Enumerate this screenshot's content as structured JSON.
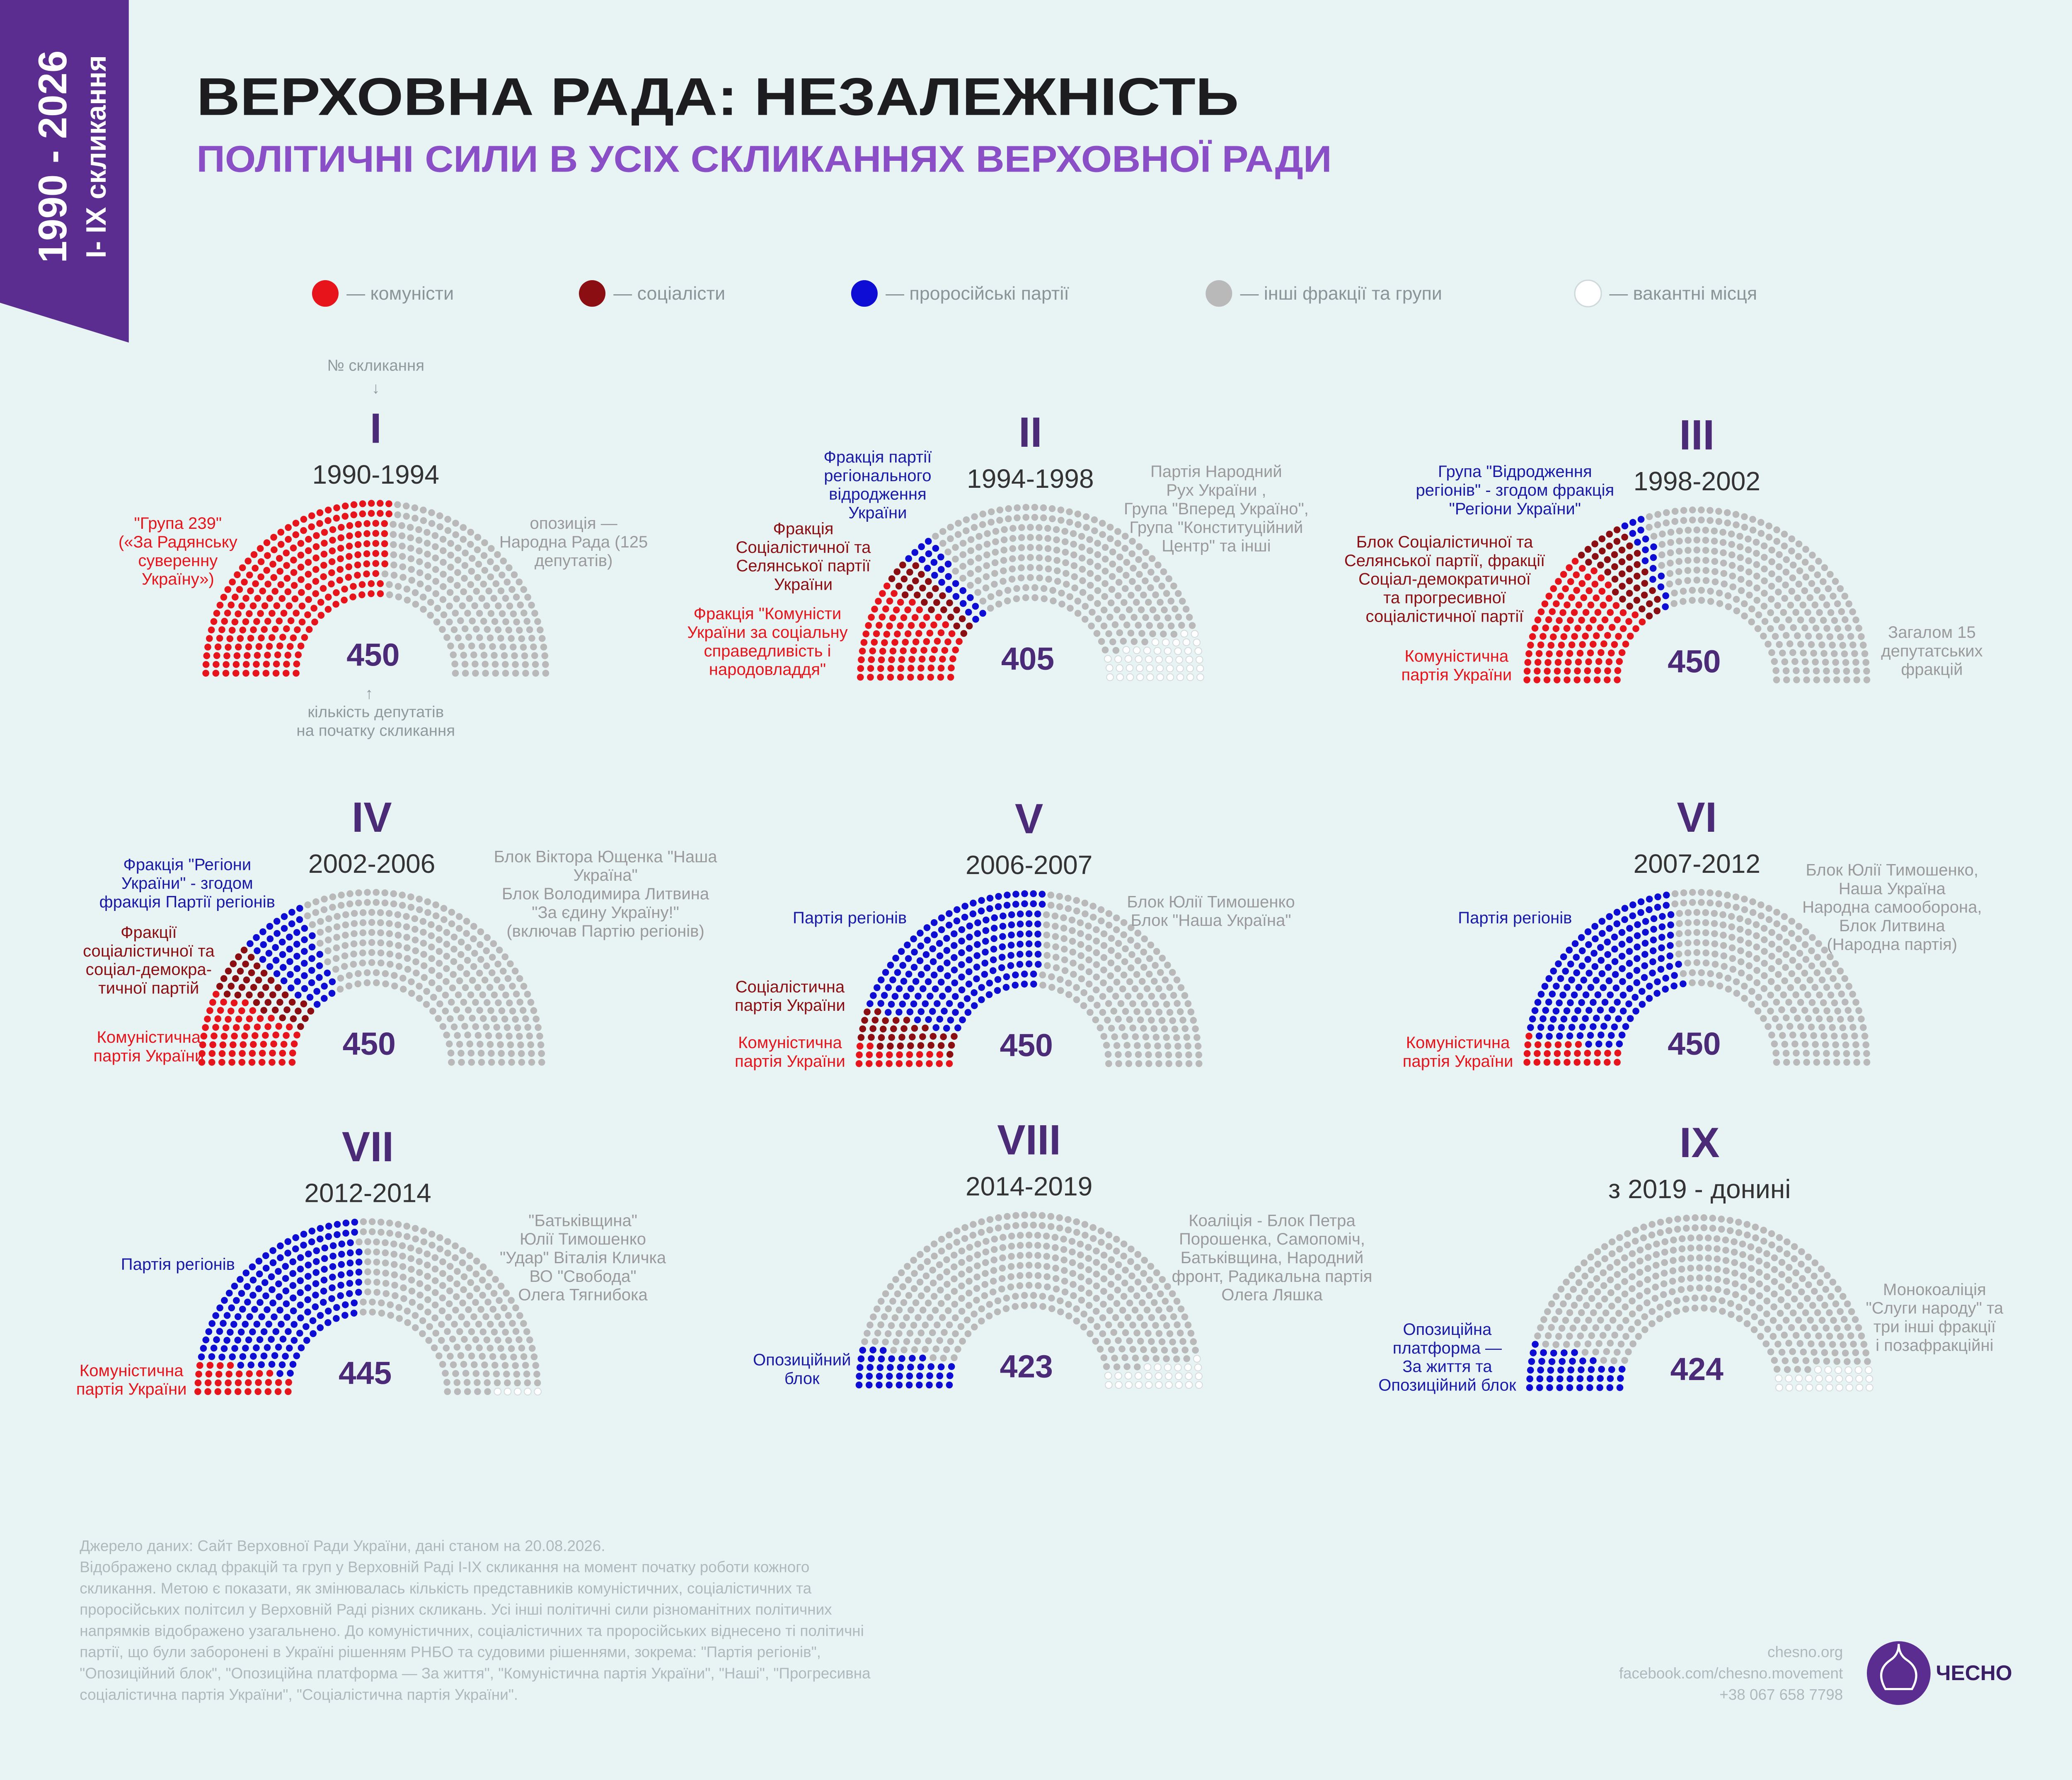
{
  "header": {
    "side": [
      "1990 - 2026",
      "І- ІХ скликання"
    ],
    "title": "ВЕРХОВНА РАДА: НЕЗАЛЕЖНІСТЬ",
    "subtitle": "ПОЛІТИЧНІ СИЛИ В УСІХ СКЛИКАННЯХ ВЕРХОВНОЇ РАДИ"
  },
  "legend": [
    {
      "name": "— комуністи",
      "color": "#e8141c"
    },
    {
      "name": "— соціалісти",
      "color": "#8b0f12"
    },
    {
      "name": "— проросійські партії",
      "color": "#0d0dd6"
    },
    {
      "name": "— інші фракції та групи",
      "color": "#b9b9b9"
    },
    {
      "name": "— вакантні місця",
      "color": "#ffffff"
    }
  ],
  "guides": {
    "convocation": "№ скликання",
    "arrow_down": "↓",
    "arrow_up": "↑",
    "seats": [
      "кількість депутатів",
      "на початку скликання"
    ]
  },
  "chart_data": [
    {
      "type": "parliament",
      "numeral": "I",
      "years": "1990-1994",
      "total": 450,
      "seats": [
        239,
        0,
        0,
        211,
        0
      ],
      "annotations": [
        {
          "color": "#e8141c",
          "lines": [
            "\"Група 239\"",
            "(«За Радянську",
            "суверенну",
            "Україну»)"
          ]
        },
        {
          "color": "#9a9a9a",
          "lines": [
            "опозиція —",
            "Народна Рада (125",
            "депутатів)"
          ]
        }
      ]
    },
    {
      "type": "parliament",
      "numeral": "II",
      "years": "1994-1998",
      "total": 405,
      "seats": [
        86,
        28,
        25,
        266,
        45
      ],
      "annotations": [
        {
          "color": "#1a1aa8",
          "lines": [
            "Фракція партії",
            "регіонального",
            "відродження",
            "України"
          ]
        },
        {
          "color": "#8b0f12",
          "lines": [
            "Фракція",
            "Соціалістичної та",
            "Селянської партії",
            "України"
          ]
        },
        {
          "color": "#e8141c",
          "lines": [
            "Фракція \"Комуністи",
            "України за соціальну",
            "справедливість і",
            "народовладдя\""
          ]
        },
        {
          "color": "#9a9a9a",
          "lines": [
            "Партія Народний",
            "Рух України ,",
            "Група \"Вперед Україно\",",
            "Група \"Конституційний",
            "Центр\" та інші"
          ]
        }
      ]
    },
    {
      "type": "parliament",
      "numeral": "III",
      "years": "1998-2002",
      "total": 450,
      "seats": [
        120,
        44,
        17,
        269,
        0
      ],
      "annotations": [
        {
          "color": "#1a1aa8",
          "lines": [
            "Група \"Відродження",
            "регіонів\" - згодом фракція",
            "\"Регіони України\""
          ]
        },
        {
          "color": "#8b0f12",
          "lines": [
            "Блок Соціалістичної та",
            "Селянської партії, фракції",
            "Соціал-демократичної",
            "та прогресивної",
            "соціалістичної партії"
          ]
        },
        {
          "color": "#e8141c",
          "lines": [
            "Комуністична",
            "партія України"
          ]
        },
        {
          "color": "#9a9a9a",
          "lines": [
            "Загалом 15",
            "депутатських",
            "фракцій"
          ]
        }
      ]
    },
    {
      "type": "parliament",
      "numeral": "IV",
      "years": "2002-2006",
      "total": 450,
      "seats": [
        66,
        41,
        58,
        285,
        0
      ],
      "annotations": [
        {
          "color": "#1a1aa8",
          "lines": [
            "Фракція \"Регіони",
            "України\" - згодом",
            "фракція Партії регіонів"
          ]
        },
        {
          "color": "#8b0f12",
          "lines": [
            "Фракції",
            "соціалістичної та",
            "соціал-демокра-",
            "тичної партій"
          ]
        },
        {
          "color": "#e8141c",
          "lines": [
            "Комуністична",
            "партія України"
          ]
        },
        {
          "color": "#9a9a9a",
          "lines": [
            "Блок Віктора Ющенка \"Наша",
            "Україна\"",
            "Блок Володимира Литвина",
            "\"За єдину Україну!\"",
            "(включав Партію регіонів)"
          ]
        }
      ]
    },
    {
      "type": "parliament",
      "numeral": "V",
      "years": "2006-2007",
      "total": 450,
      "seats": [
        21,
        33,
        186,
        210,
        0
      ],
      "annotations": [
        {
          "color": "#1a1aa8",
          "lines": [
            "Партія регіонів"
          ]
        },
        {
          "color": "#8b0f12",
          "lines": [
            "Соціалістична",
            "партія України"
          ]
        },
        {
          "color": "#e8141c",
          "lines": [
            "Комуністична",
            "партія України"
          ]
        },
        {
          "color": "#9a9a9a",
          "lines": [
            "Блок Юлії Тимошенко",
            "Блок \"Наша Україна\""
          ]
        }
      ]
    },
    {
      "type": "parliament",
      "numeral": "VI",
      "years": "2007-2012",
      "total": 450,
      "seats": [
        27,
        0,
        175,
        248,
        0
      ],
      "annotations": [
        {
          "color": "#1a1aa8",
          "lines": [
            "Партія регіонів"
          ]
        },
        {
          "color": "#e8141c",
          "lines": [
            "Комуністична",
            "партія України"
          ]
        },
        {
          "color": "#9a9a9a",
          "lines": [
            "Блок Юлії Тимошенко,",
            "Наша Україна",
            "Народна самооборона,",
            "Блок Литвина",
            "(Народна партія)"
          ]
        }
      ]
    },
    {
      "type": "parliament",
      "numeral": "VII",
      "years": "2012-2014",
      "total": 445,
      "seats": [
        32,
        0,
        185,
        228,
        5
      ],
      "annotations": [
        {
          "color": "#1a1aa8",
          "lines": [
            "Партія регіонів"
          ]
        },
        {
          "color": "#e8141c",
          "lines": [
            "Комуністична",
            "партія України"
          ]
        },
        {
          "color": "#9a9a9a",
          "lines": [
            "\"Батьківщина\"",
            "Юлії Тимошенко",
            "\"Удар\" Віталія Кличка",
            "ВО \"Свобода\"",
            "Олега Тягнибока"
          ]
        }
      ]
    },
    {
      "type": "parliament",
      "numeral": "VIII",
      "years": "2014-2019",
      "total": 423,
      "seats": [
        0,
        0,
        40,
        383,
        27
      ],
      "annotations": [
        {
          "color": "#1a1aa8",
          "lines": [
            "Опозиційний",
            "блок"
          ]
        },
        {
          "color": "#9a9a9a",
          "lines": [
            "Коаліція - Блок Петра",
            "Порошенка, Самопоміч,",
            "Батьківщина, Народний",
            "фронт, Радикальна партія",
            "Олега Ляшка"
          ]
        }
      ]
    },
    {
      "type": "parliament",
      "numeral": "IX",
      "years": "з 2019 - донині",
      "total": 424,
      "seats": [
        0,
        0,
        43,
        381,
        26
      ],
      "annotations": [
        {
          "color": "#1a1aa8",
          "lines": [
            "Опозиційна",
            "платформа —",
            "За життя та",
            "Опозиційний блок"
          ]
        },
        {
          "color": "#9a9a9a",
          "lines": [
            "Монокоаліція",
            "\"Слуги народу\" та",
            "три інші фракції",
            "і позафракційні"
          ]
        }
      ]
    }
  ],
  "footer": {
    "notes": [
      "Джерело даних: Сайт Верховної Ради України, дані станом на 20.08.2026.",
      "Відображено склад фракцій та груп у Верховній Раді І-ІХ скликання на момент початку роботи кожного",
      "скликання. Метою є показати, як змінювалась кількість представників комуністичних, соціалістичних та",
      "проросійських політсил у Верховній Раді різних скликань. Усі інші політичні сили різноманітних політичних",
      "напрямків відображено узагальнено. До комуністичних, соціалістичних та проросійських віднесено ті політичні",
      "партії, що були заборонені в Україні рішенням РНБО та судовими рішеннями, зокрема: \"Партія регіонів\",",
      "\"Опозиційний блок\", \"Опозиційна платформа — За життя\", \"Комуністична партія України\", \"Наші\", \"Прогресивна",
      "соціалістична партія України\", \"Соціалістична партія України\"."
    ],
    "contacts": [
      "chesno.org",
      "facebook.com/chesno.movement",
      "+38 067 658 7798"
    ],
    "logo": "ЧЕСНО"
  }
}
